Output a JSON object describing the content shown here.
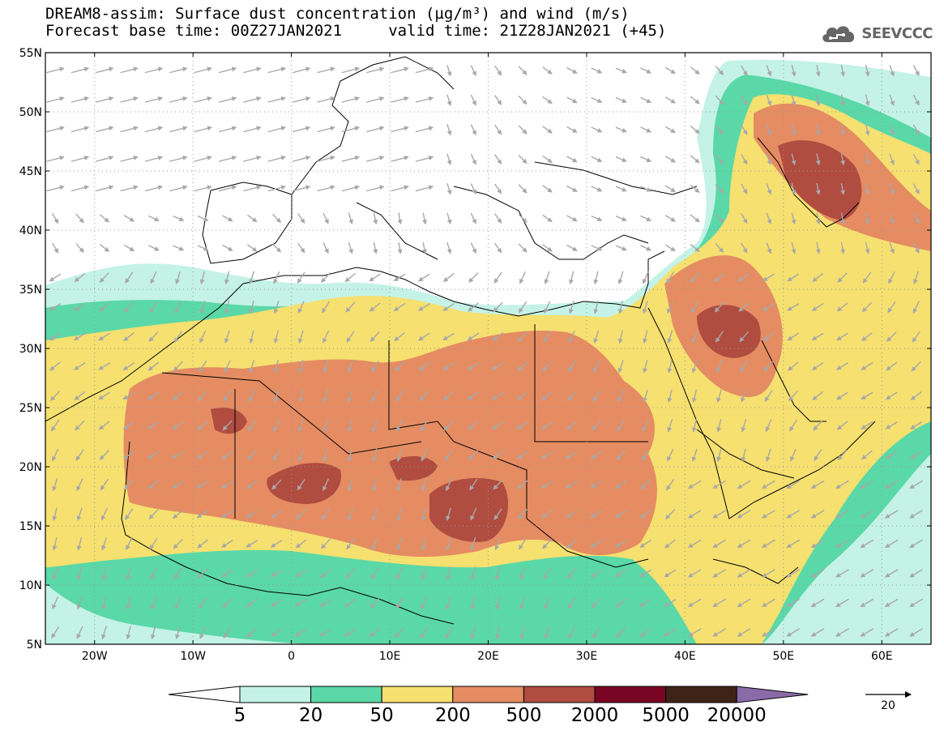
{
  "title": {
    "line1": "DREAM8-assim: Surface dust concentration (µg/m³) and wind (m/s)",
    "line2": "Forecast base time: 00Z27JAN2021     valid time: 21Z28JAN2021 (+45)"
  },
  "logo": {
    "text": "SEEVCCC",
    "icon": "cloud-icon"
  },
  "map": {
    "lon_range": [
      -25,
      65
    ],
    "lat_range": [
      5,
      55
    ],
    "lat_ticks": [
      {
        "value": 55,
        "label": "55N"
      },
      {
        "value": 50,
        "label": "50N"
      },
      {
        "value": 45,
        "label": "45N"
      },
      {
        "value": 40,
        "label": "40N"
      },
      {
        "value": 35,
        "label": "35N"
      },
      {
        "value": 30,
        "label": "30N"
      },
      {
        "value": 25,
        "label": "25N"
      },
      {
        "value": 20,
        "label": "20N"
      },
      {
        "value": 15,
        "label": "15N"
      },
      {
        "value": 10,
        "label": "10N"
      },
      {
        "value": 5,
        "label": "5N"
      }
    ],
    "lon_ticks": [
      {
        "value": -20,
        "label": "20W"
      },
      {
        "value": -10,
        "label": "10W"
      },
      {
        "value": 0,
        "label": "0"
      },
      {
        "value": 10,
        "label": "10E"
      },
      {
        "value": 20,
        "label": "20E"
      },
      {
        "value": 30,
        "label": "30E"
      },
      {
        "value": 40,
        "label": "40E"
      },
      {
        "value": 50,
        "label": "50E"
      },
      {
        "value": 60,
        "label": "60E"
      }
    ],
    "grid": true
  },
  "colorbar": {
    "labels": [
      "5",
      "20",
      "50",
      "200",
      "500",
      "2000",
      "5000",
      "20000"
    ],
    "colors": [
      "#ffffff",
      "#c4f2e6",
      "#5ad8a8",
      "#f5e070",
      "#e58c62",
      "#b04c40",
      "#7a0424",
      "#3e2418",
      "#8a6aa8"
    ]
  },
  "wind_reference": {
    "label": "20",
    "value": 20
  },
  "colors": {
    "land_outline": "#000000",
    "wind_arrows": "#a8a8a8",
    "grid": "#999999"
  }
}
